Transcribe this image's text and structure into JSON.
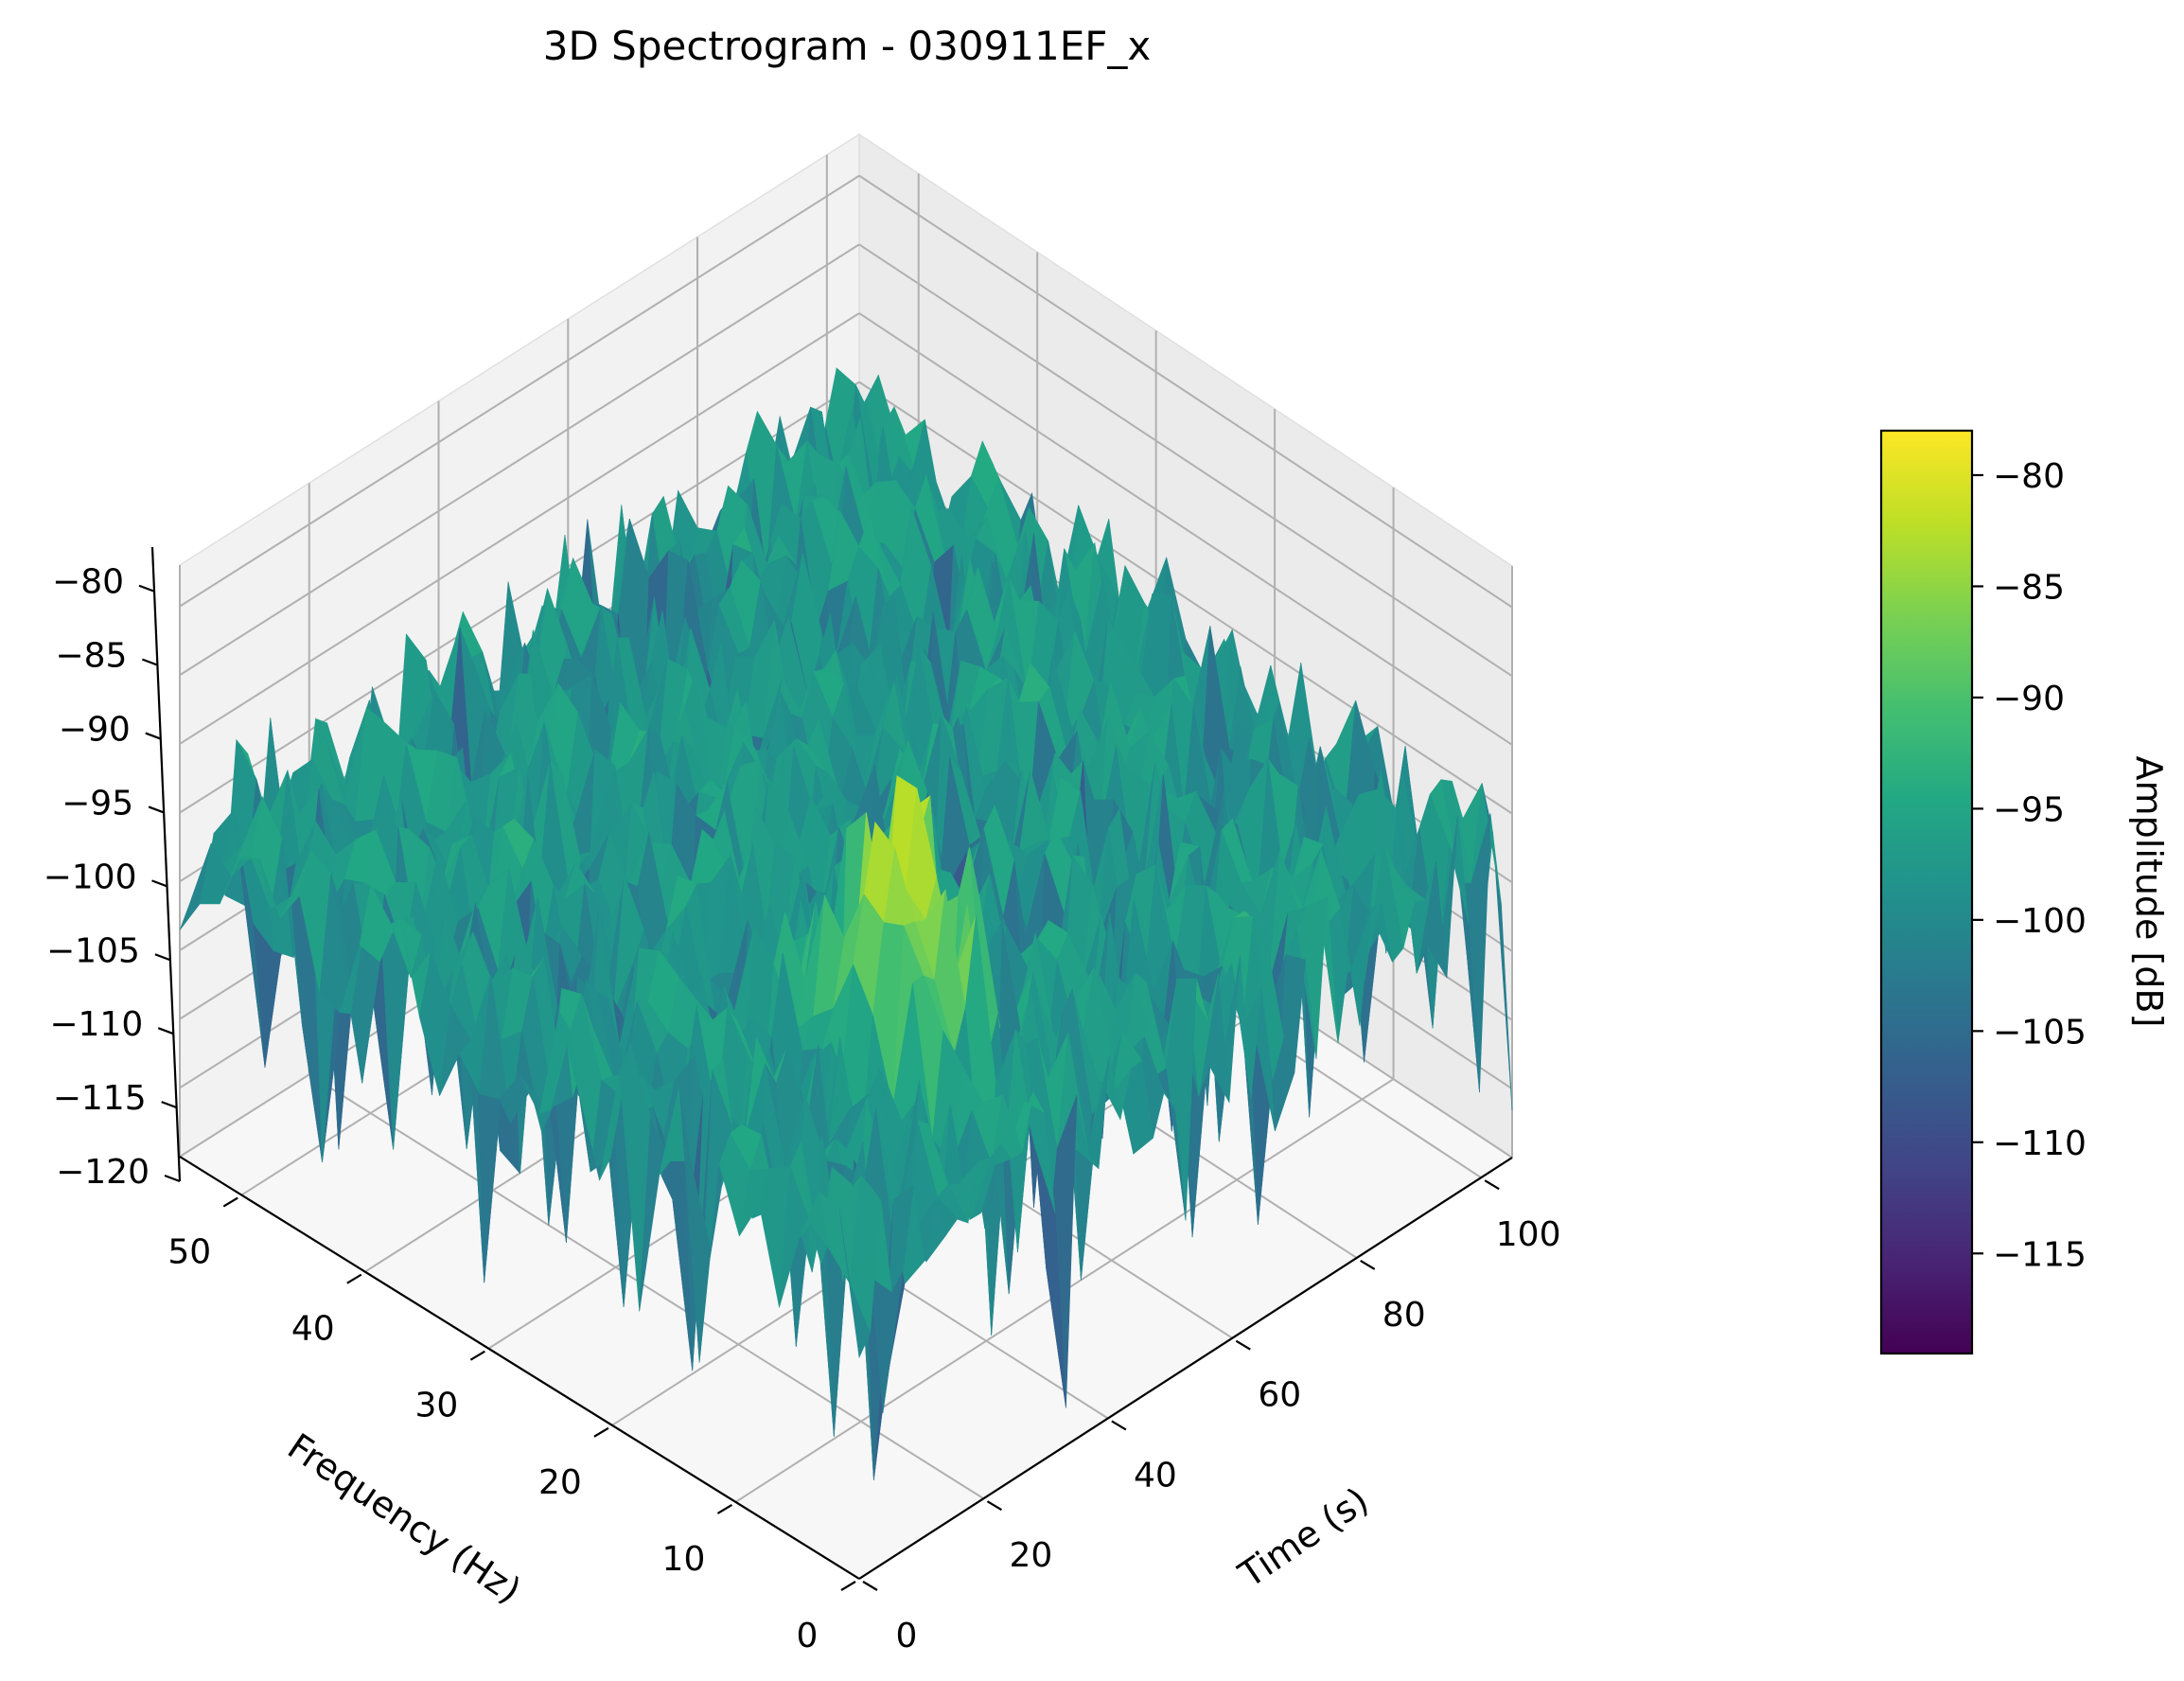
{
  "chart_data": {
    "type": "surface3d",
    "title": "3D Spectrogram - 030911EF_x",
    "x_axis": {
      "label": "Time (s)",
      "range": [
        0,
        105
      ],
      "ticks": [
        0,
        20,
        40,
        60,
        80,
        100
      ],
      "tick_labels": [
        "0",
        "20",
        "40",
        "60",
        "80",
        "100"
      ]
    },
    "y_axis": {
      "label": "Frequency (Hz)",
      "range": [
        0,
        55
      ],
      "ticks": [
        0,
        10,
        20,
        30,
        40,
        50
      ],
      "tick_labels": [
        "0",
        "10",
        "20",
        "30",
        "40",
        "50"
      ]
    },
    "z_axis": {
      "range": [
        -120,
        -77
      ],
      "ticks": [
        -120,
        -115,
        -110,
        -105,
        -100,
        -95,
        -90,
        -85,
        -80
      ],
      "tick_labels": [
        "−120",
        "−115",
        "−110",
        "−105",
        "−100",
        "−95",
        "−90",
        "−85",
        "−80"
      ]
    },
    "colorbar": {
      "label": "Amplitude [dB]",
      "colormap": "viridis",
      "range": [
        -119.5,
        -78
      ],
      "ticks": [
        -115,
        -110,
        -105,
        -100,
        -95,
        -90,
        -85,
        -80
      ],
      "tick_labels": [
        "−115",
        "−110",
        "−105",
        "−100",
        "−95",
        "−90",
        "−85",
        "−80"
      ]
    },
    "surface_summary": {
      "time_range_s": [
        0,
        105
      ],
      "frequency_range_hz": [
        0,
        55
      ],
      "baseline_db": -98,
      "peak_db": -78,
      "peak_time_s": 32,
      "peak_frequency_hz": 12
    },
    "grid": true
  }
}
